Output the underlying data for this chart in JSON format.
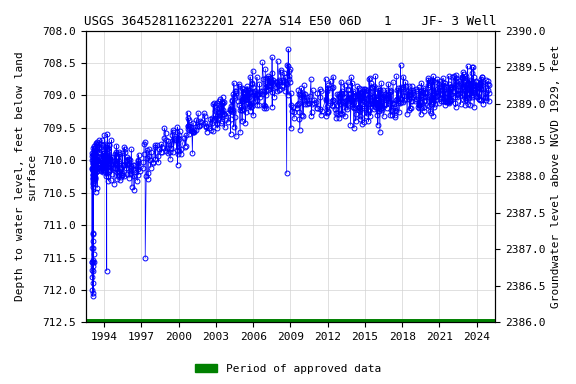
{
  "title": "USGS 364528116232201 227A S14 E50 06D   1    JF- 3 Well",
  "xlabel_ticks": [
    "1994",
    "1997",
    "2000",
    "2003",
    "2006",
    "2009",
    "2012",
    "2015",
    "2018",
    "2021",
    "2024"
  ],
  "ylabel_left": "Depth to water level, feet below land\nsurface",
  "ylabel_right": "Groundwater level above NGVD 1929, feet",
  "ylim_left": [
    712.5,
    708.0
  ],
  "ylim_right": [
    2386.0,
    2390.0
  ],
  "xlim": [
    1992.5,
    2025.5
  ],
  "marker_color": "#0000ff",
  "legend_label": "Period of approved data",
  "legend_color": "#008000",
  "title_fontsize": 9,
  "label_fontsize": 8,
  "tick_fontsize": 8,
  "yticks_left": [
    708.0,
    708.5,
    709.0,
    709.5,
    710.0,
    710.5,
    711.0,
    711.5,
    712.0,
    712.5
  ],
  "yticks_right": [
    2386.0,
    2386.5,
    2387.0,
    2387.5,
    2388.0,
    2388.5,
    2389.0,
    2389.5,
    2390.0
  ]
}
